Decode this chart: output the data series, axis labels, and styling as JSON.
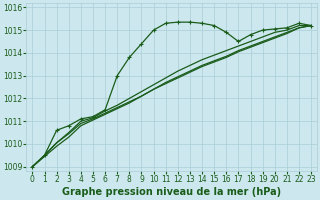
{
  "xlabel": "Graphe pression niveau de la mer (hPa)",
  "background_color": "#cce8ee",
  "grid_color": "#aacdd6",
  "line_color": "#1a5c1a",
  "x_values": [
    0,
    1,
    2,
    3,
    4,
    5,
    6,
    7,
    8,
    9,
    10,
    11,
    12,
    13,
    14,
    15,
    16,
    17,
    18,
    19,
    20,
    21,
    22,
    23
  ],
  "series1": [
    1009.0,
    1009.5,
    1010.6,
    1010.8,
    1011.1,
    1011.2,
    1011.5,
    1013.0,
    1013.8,
    1014.4,
    1015.0,
    1015.3,
    1015.35,
    1015.35,
    1015.3,
    1015.2,
    1014.9,
    1014.5,
    1014.8,
    1015.0,
    1015.05,
    1015.1,
    1015.3,
    1015.2
  ],
  "series2": [
    1009.0,
    1009.5,
    1010.05,
    1010.45,
    1010.9,
    1011.1,
    1011.35,
    1011.6,
    1011.85,
    1012.1,
    1012.4,
    1012.65,
    1012.9,
    1013.15,
    1013.4,
    1013.6,
    1013.8,
    1014.05,
    1014.25,
    1014.45,
    1014.65,
    1014.85,
    1015.1,
    1015.2
  ],
  "series3": [
    1009.0,
    1009.45,
    1009.9,
    1010.3,
    1010.8,
    1011.05,
    1011.3,
    1011.55,
    1011.8,
    1012.1,
    1012.4,
    1012.7,
    1012.95,
    1013.2,
    1013.45,
    1013.65,
    1013.85,
    1014.1,
    1014.3,
    1014.5,
    1014.7,
    1014.9,
    1015.1,
    1015.2
  ],
  "series4": [
    1009.0,
    1009.5,
    1010.05,
    1010.5,
    1011.0,
    1011.15,
    1011.45,
    1011.7,
    1012.0,
    1012.3,
    1012.6,
    1012.9,
    1013.2,
    1013.45,
    1013.7,
    1013.9,
    1014.1,
    1014.3,
    1014.5,
    1014.7,
    1014.9,
    1015.0,
    1015.2,
    1015.2
  ],
  "ylim": [
    1008.8,
    1016.2
  ],
  "yticks": [
    1009,
    1010,
    1011,
    1012,
    1013,
    1014,
    1015,
    1016
  ],
  "xticks": [
    0,
    1,
    2,
    3,
    4,
    5,
    6,
    7,
    8,
    9,
    10,
    11,
    12,
    13,
    14,
    15,
    16,
    17,
    18,
    19,
    20,
    21,
    22,
    23
  ],
  "tick_fontsize": 5.5,
  "label_fontsize": 7,
  "marker": "+",
  "markersize": 3.5,
  "linewidth": 0.9
}
